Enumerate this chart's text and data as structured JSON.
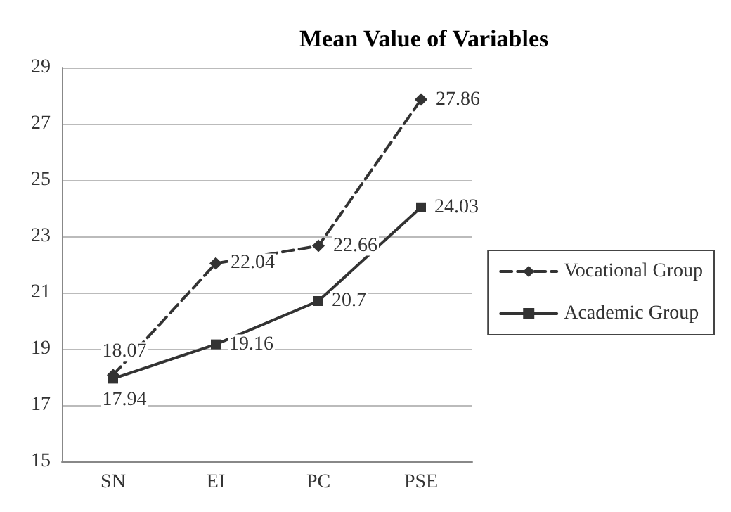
{
  "chart_data": {
    "type": "line",
    "title": "Mean Value of Variables",
    "categories": [
      "SN",
      "EI",
      "PC",
      "PSE"
    ],
    "series": [
      {
        "name": "Vocational Group",
        "color": "#333333",
        "values": [
          18.07,
          22.04,
          22.66,
          27.86
        ],
        "marker": "diamond",
        "line_style": "dashed"
      },
      {
        "name": "Academic Group",
        "color": "#333333",
        "values": [
          17.94,
          19.16,
          20.7,
          24.03
        ],
        "marker": "square",
        "line_style": "solid"
      }
    ],
    "ylim": [
      15,
      29
    ],
    "yticks": [
      15,
      17,
      19,
      21,
      23,
      25,
      27,
      29
    ],
    "grid": "y",
    "legend": "right",
    "data_labels": true
  }
}
